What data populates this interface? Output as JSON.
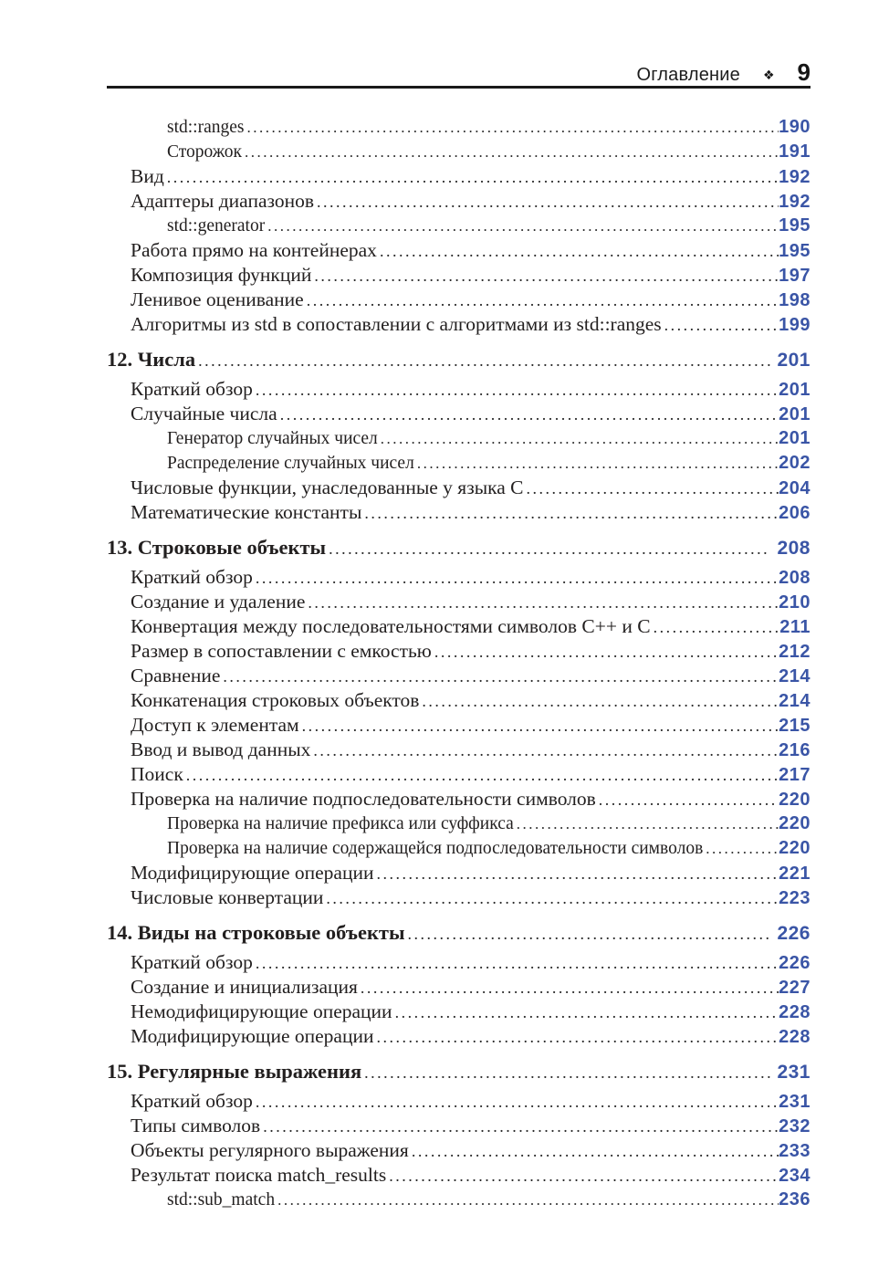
{
  "header": {
    "title": "Оглавление",
    "ornament": "❖",
    "page_number": "9"
  },
  "colors": {
    "page_number_blue": "#3a55a6",
    "text_ink": "#221f1f",
    "rule": "#1a1a1a"
  },
  "toc": {
    "entries": [
      {
        "level": 3,
        "label": "std::ranges",
        "page": "190"
      },
      {
        "level": 3,
        "label": "Сторожок",
        "page": "191"
      },
      {
        "level": 2,
        "label": "Вид",
        "page": "192"
      },
      {
        "level": 2,
        "label": "Адаптеры диапазонов",
        "page": "192"
      },
      {
        "level": 3,
        "label": "std::generator",
        "page": "195"
      },
      {
        "level": 2,
        "label": "Работа прямо на контейнерах",
        "page": "195"
      },
      {
        "level": 2,
        "label": "Композиция функций",
        "page": "197"
      },
      {
        "level": 2,
        "label": "Ленивое оценивание",
        "page": "198"
      },
      {
        "level": 2,
        "label": "Алгоритмы из std в сопоставлении с алгоритмами из std::ranges",
        "page": "199"
      },
      {
        "level": 1,
        "label": "12. Числа",
        "page": "201"
      },
      {
        "level": 2,
        "label": "Краткий обзор",
        "page": "201"
      },
      {
        "level": 2,
        "label": "Случайные числа",
        "page": "201"
      },
      {
        "level": 3,
        "label": "Генератор случайных чисел",
        "page": "201"
      },
      {
        "level": 3,
        "label": "Распределение случайных чисел",
        "page": "202"
      },
      {
        "level": 2,
        "label": "Числовые функции, унаследованные у языка C",
        "page": "204"
      },
      {
        "level": 2,
        "label": "Математические константы",
        "page": "206"
      },
      {
        "level": 1,
        "label": "13. Строковые объекты",
        "page": "208"
      },
      {
        "level": 2,
        "label": "Краткий обзор",
        "page": "208"
      },
      {
        "level": 2,
        "label": "Создание и удаление",
        "page": "210"
      },
      {
        "level": 2,
        "label": "Конвертация между последовательностями символов C++ и C",
        "page": "211"
      },
      {
        "level": 2,
        "label": "Размер в сопоставлении с емкостью",
        "page": "212"
      },
      {
        "level": 2,
        "label": "Сравнение",
        "page": "214"
      },
      {
        "level": 2,
        "label": "Конкатенация строковых объектов",
        "page": "214"
      },
      {
        "level": 2,
        "label": "Доступ к элементам",
        "page": "215"
      },
      {
        "level": 2,
        "label": "Ввод и вывод данных",
        "page": "216"
      },
      {
        "level": 2,
        "label": "Поиск",
        "page": "217"
      },
      {
        "level": 2,
        "label": "Проверка на наличие подпоследовательности символов",
        "page": "220"
      },
      {
        "level": 3,
        "label": "Проверка на наличие префикса или суффикса",
        "page": "220"
      },
      {
        "level": 3,
        "label": "Проверка на наличие содержащейся подпоследовательности символов",
        "page": "220"
      },
      {
        "level": 2,
        "label": "Модифицирующие операции",
        "page": "221"
      },
      {
        "level": 2,
        "label": "Числовые конвертации",
        "page": "223"
      },
      {
        "level": 1,
        "label": "14. Виды на строковые объекты",
        "page": "226"
      },
      {
        "level": 2,
        "label": "Краткий обзор",
        "page": "226"
      },
      {
        "level": 2,
        "label": "Создание и инициализация",
        "page": "227"
      },
      {
        "level": 2,
        "label": "Немодифицирующие операции",
        "page": "228"
      },
      {
        "level": 2,
        "label": "Модифицирующие операции",
        "page": "228"
      },
      {
        "level": 1,
        "label": "15. Регулярные выражения",
        "page": "231"
      },
      {
        "level": 2,
        "label": "Краткий обзор",
        "page": "231"
      },
      {
        "level": 2,
        "label": "Типы символов",
        "page": "232"
      },
      {
        "level": 2,
        "label": "Объекты регулярного выражения",
        "page": "233"
      },
      {
        "level": 2,
        "label": "Результат поиска match_results",
        "page": "234"
      },
      {
        "level": 3,
        "label": "std::sub_match",
        "page": "236"
      }
    ]
  }
}
